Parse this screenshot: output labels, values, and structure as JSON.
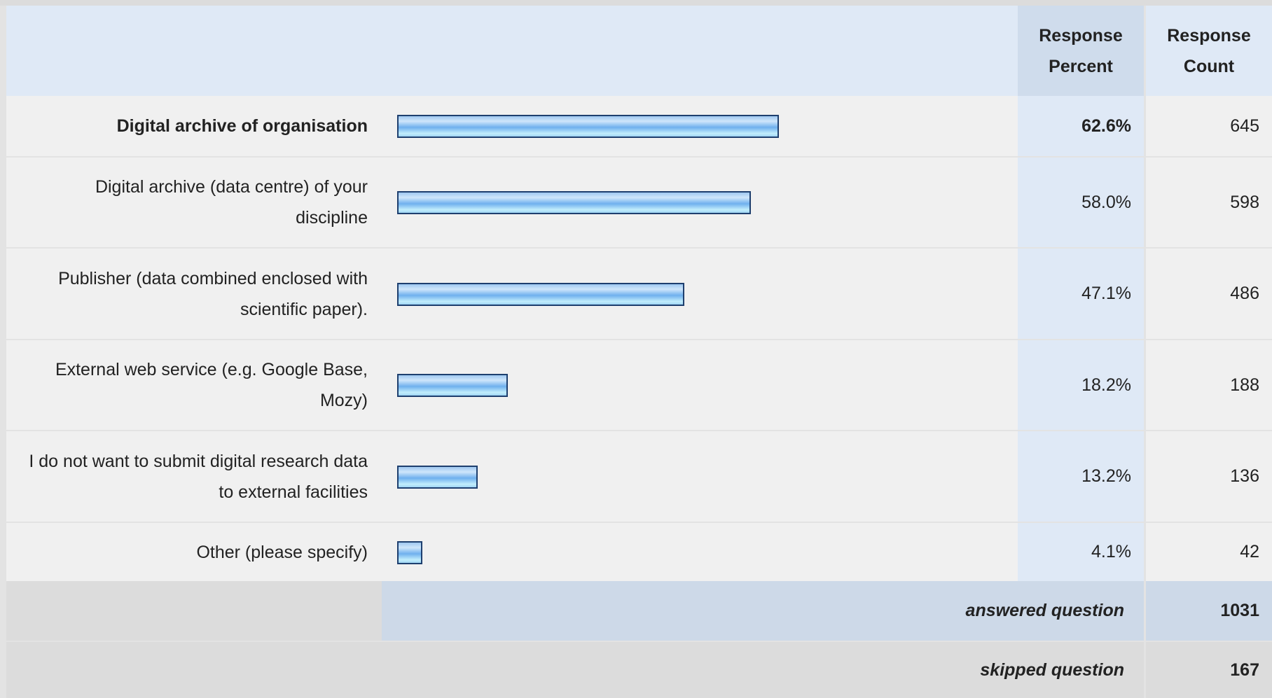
{
  "table": {
    "header": {
      "percent": "Response Percent",
      "count": "Response Count"
    },
    "rows": [
      {
        "label": "Digital archive of organisation",
        "percent": 62.6,
        "percent_label": "62.6%",
        "count": 645
      },
      {
        "label": "Digital archive (data centre) of your discipline",
        "percent": 58.0,
        "percent_label": "58.0%",
        "count": 598
      },
      {
        "label": "Publisher (data combined enclosed with scientific paper).",
        "percent": 47.1,
        "percent_label": "47.1%",
        "count": 486
      },
      {
        "label": "External web service (e.g. Google Base, Mozy)",
        "percent": 18.2,
        "percent_label": "18.2%",
        "count": 188
      },
      {
        "label": "I do not want to submit digital research data to external facilities",
        "percent": 13.2,
        "percent_label": "13.2%",
        "count": 136
      },
      {
        "label": "Other (please specify)",
        "percent": 4.1,
        "percent_label": "4.1%",
        "count": 42
      }
    ],
    "answered": {
      "label": "answered question",
      "count": 1031
    },
    "skipped": {
      "label": "skipped question",
      "count": 167
    }
  }
}
